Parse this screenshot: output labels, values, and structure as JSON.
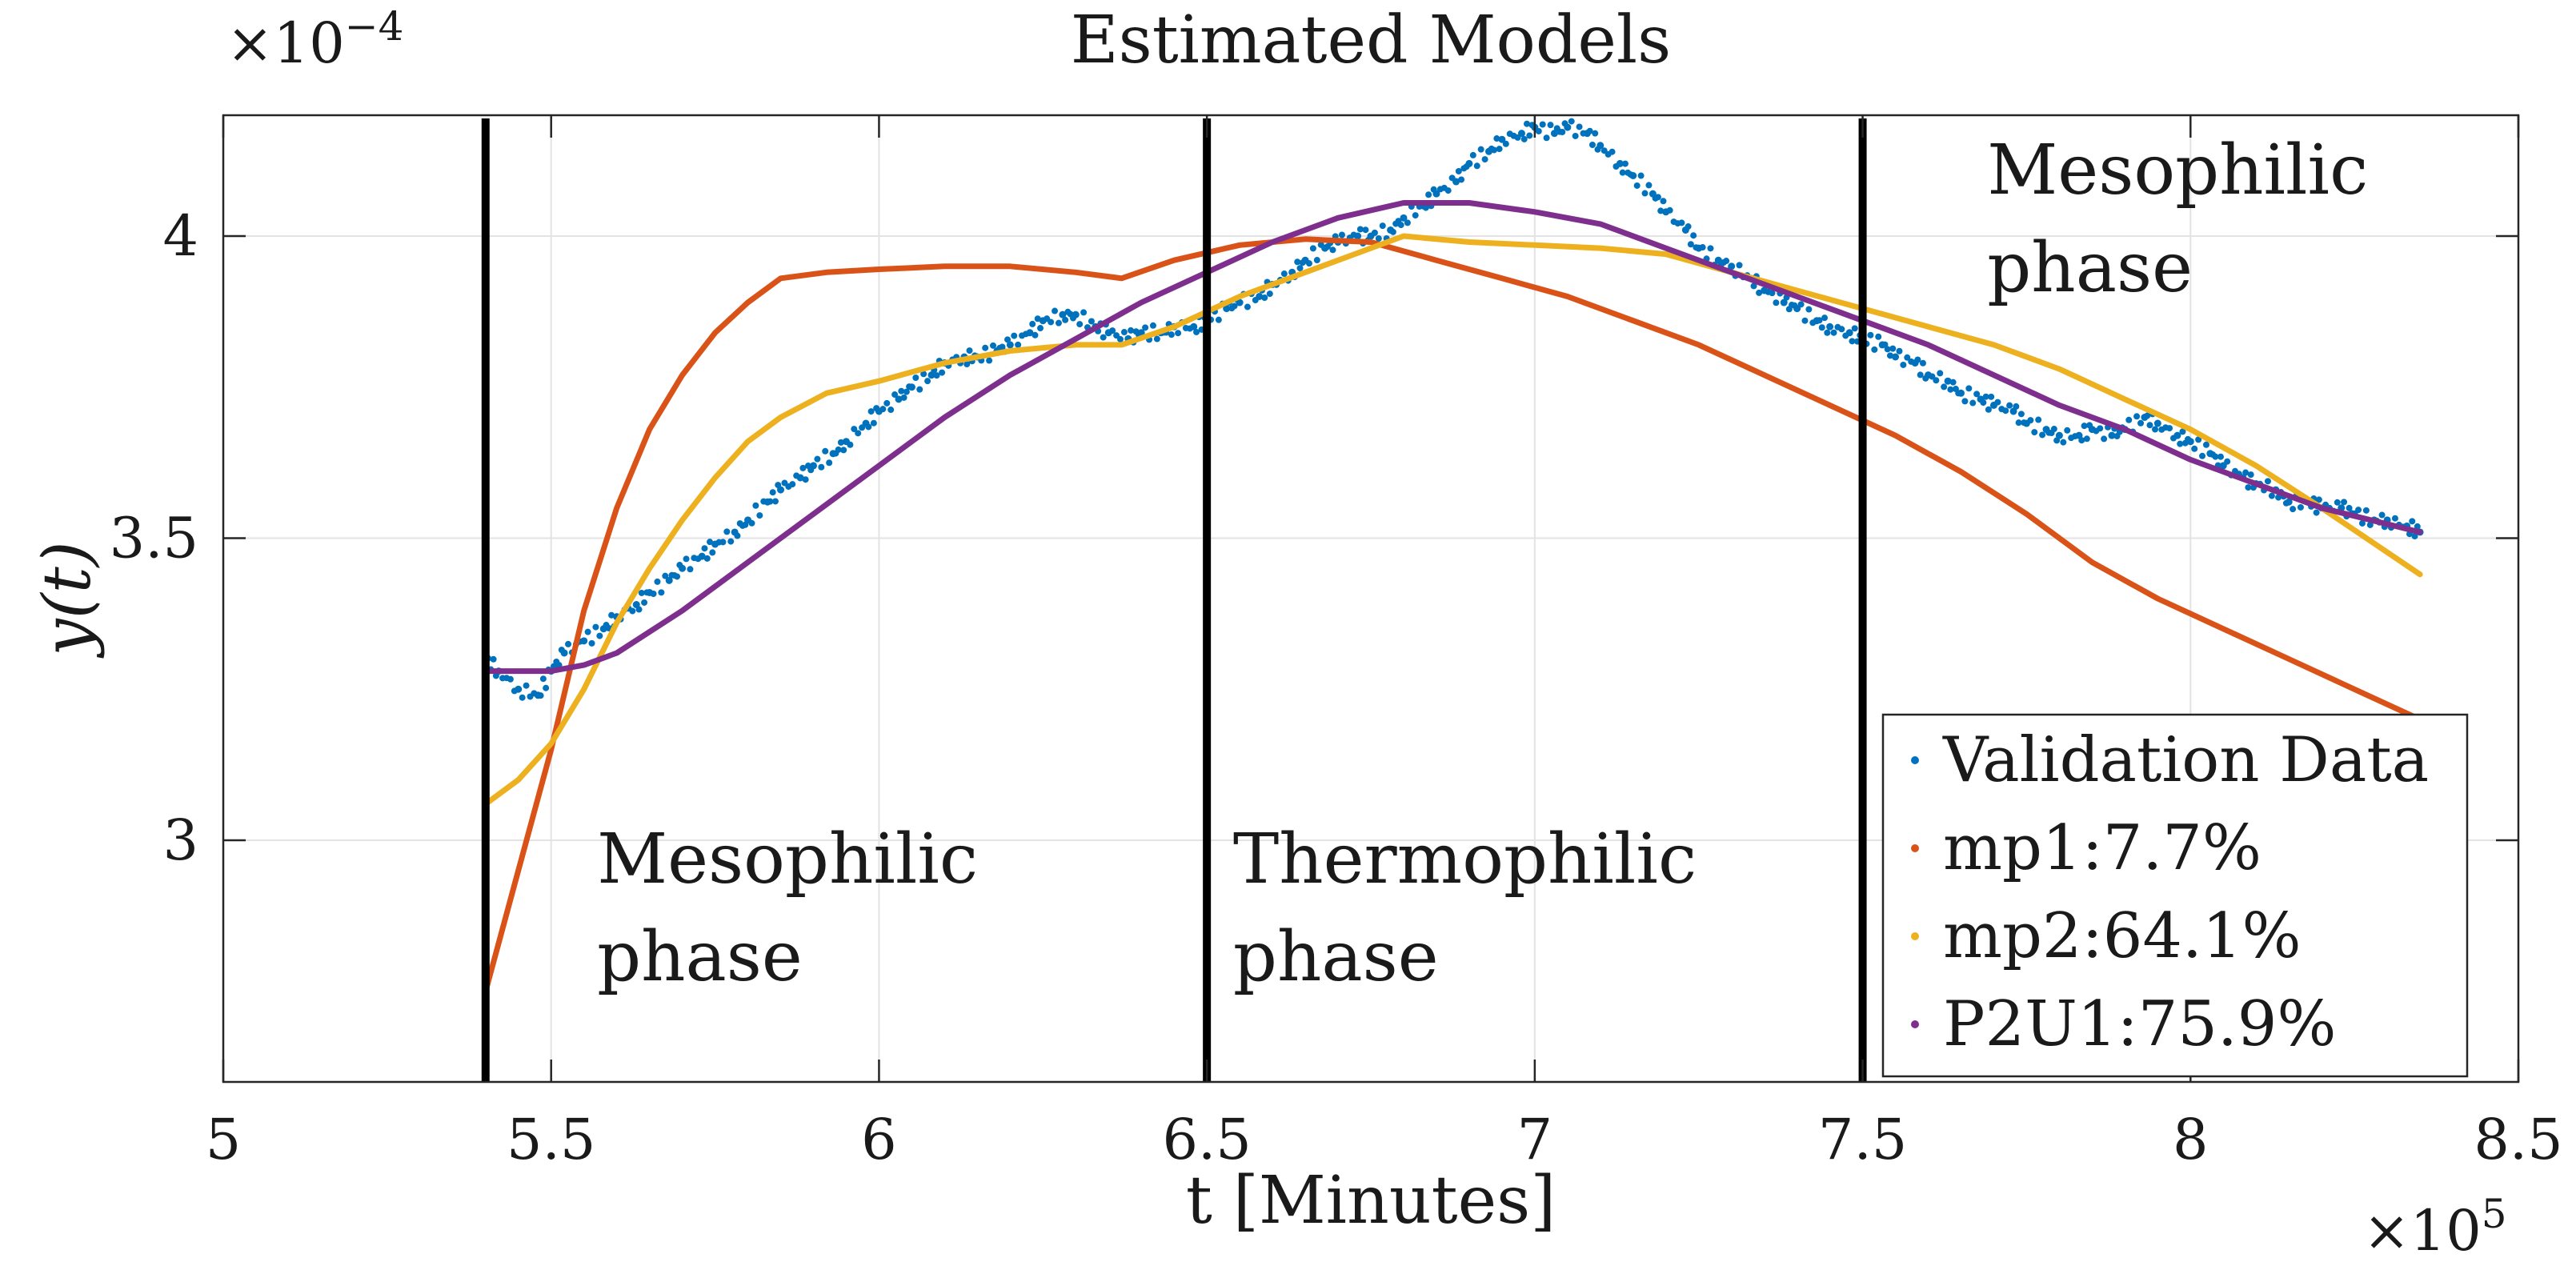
{
  "chart_data": {
    "type": "line",
    "title": "Estimated Models",
    "xlabel": "t [Minutes]",
    "ylabel": "y(t)",
    "x_multiplier_label": "×10",
    "x_multiplier_exp": "5",
    "y_multiplier_label": "×10",
    "y_multiplier_exp": "−4",
    "xlim": [
      5.0,
      8.5
    ],
    "ylim": [
      2.6,
      4.2
    ],
    "xticks": [
      5,
      5.5,
      6,
      6.5,
      7,
      7.5,
      8,
      8.5
    ],
    "xtick_labels": [
      "5",
      "5.5",
      "6",
      "6.5",
      "7",
      "7.5",
      "8",
      "8.5"
    ],
    "yticks": [
      3.0,
      3.5,
      4.0
    ],
    "ytick_labels": [
      "3",
      "3.5",
      "4"
    ],
    "grid": true,
    "legend_position": "bottom-right",
    "phase_lines": [
      5.4,
      6.5,
      7.5
    ],
    "annotations": [
      {
        "line1": "Mesophilic",
        "line2": "phase",
        "x": 5.57,
        "y": 2.93
      },
      {
        "line1": "Thermophilic",
        "line2": "phase",
        "x": 6.54,
        "y": 2.93
      },
      {
        "line1": "Mesophilic",
        "line2": "phase",
        "x": 7.69,
        "y": 4.07
      }
    ],
    "series": [
      {
        "name": "Validation Data",
        "legend_label": "Validation Data",
        "style": "points",
        "color": "#0072BD",
        "x": [
          5.4,
          5.42,
          5.45,
          5.48,
          5.5,
          5.52,
          5.55,
          5.58,
          5.6,
          5.63,
          5.65,
          5.68,
          5.7,
          5.73,
          5.75,
          5.78,
          5.8,
          5.83,
          5.85,
          5.88,
          5.9,
          5.93,
          5.95,
          5.98,
          6.0,
          6.03,
          6.05,
          6.08,
          6.1,
          6.13,
          6.15,
          6.18,
          6.2,
          6.23,
          6.25,
          6.28,
          6.3,
          6.33,
          6.35,
          6.38,
          6.4,
          6.43,
          6.45,
          6.48,
          6.5,
          6.53,
          6.55,
          6.58,
          6.6,
          6.63,
          6.65,
          6.68,
          6.7,
          6.73,
          6.75,
          6.78,
          6.8,
          6.83,
          6.85,
          6.88,
          6.9,
          6.93,
          6.95,
          6.98,
          7.0,
          7.03,
          7.05,
          7.08,
          7.1,
          7.13,
          7.15,
          7.18,
          7.2,
          7.23,
          7.25,
          7.28,
          7.3,
          7.33,
          7.35,
          7.38,
          7.4,
          7.43,
          7.45,
          7.48,
          7.5,
          7.53,
          7.55,
          7.58,
          7.6,
          7.63,
          7.65,
          7.68,
          7.7,
          7.73,
          7.75,
          7.78,
          7.8,
          7.83,
          7.85,
          7.88,
          7.9,
          7.93,
          7.95,
          7.98,
          8.0,
          8.03,
          8.05,
          8.08,
          8.1,
          8.13,
          8.15,
          8.18,
          8.2,
          8.23,
          8.25,
          8.28,
          8.3,
          8.33,
          8.35
        ],
        "y": [
          3.3,
          3.28,
          3.25,
          3.24,
          3.28,
          3.31,
          3.33,
          3.35,
          3.37,
          3.39,
          3.41,
          3.43,
          3.45,
          3.47,
          3.49,
          3.51,
          3.53,
          3.56,
          3.58,
          3.6,
          3.62,
          3.64,
          3.66,
          3.69,
          3.71,
          3.73,
          3.75,
          3.77,
          3.79,
          3.8,
          3.8,
          3.81,
          3.82,
          3.84,
          3.86,
          3.87,
          3.87,
          3.85,
          3.84,
          3.83,
          3.84,
          3.84,
          3.85,
          3.85,
          3.86,
          3.88,
          3.89,
          3.9,
          3.92,
          3.94,
          3.96,
          3.98,
          3.99,
          4.0,
          4.0,
          4.01,
          4.03,
          4.05,
          4.07,
          4.09,
          4.12,
          4.14,
          4.16,
          4.17,
          4.18,
          4.17,
          4.18,
          4.17,
          4.15,
          4.12,
          4.1,
          4.07,
          4.04,
          4.01,
          3.98,
          3.96,
          3.95,
          3.93,
          3.91,
          3.89,
          3.88,
          3.86,
          3.85,
          3.84,
          3.83,
          3.82,
          3.8,
          3.79,
          3.77,
          3.76,
          3.74,
          3.73,
          3.72,
          3.71,
          3.69,
          3.68,
          3.67,
          3.67,
          3.68,
          3.67,
          3.68,
          3.7,
          3.69,
          3.67,
          3.66,
          3.64,
          3.62,
          3.6,
          3.59,
          3.58,
          3.56,
          3.56,
          3.55,
          3.55,
          3.54,
          3.53,
          3.53,
          3.52,
          3.51
        ]
      },
      {
        "name": "mp1:7.7%",
        "legend_label": "mp1:7.7%",
        "style": "line",
        "color": "#D95319",
        "x": [
          5.4,
          5.45,
          5.5,
          5.55,
          5.6,
          5.65,
          5.7,
          5.75,
          5.8,
          5.85,
          5.92,
          6.0,
          6.1,
          6.2,
          6.3,
          6.37,
          6.45,
          6.55,
          6.65,
          6.75,
          6.85,
          6.95,
          7.05,
          7.15,
          7.25,
          7.35,
          7.45,
          7.55,
          7.65,
          7.75,
          7.85,
          7.95,
          8.05,
          8.15,
          8.25,
          8.35
        ],
        "y": [
          2.75,
          2.95,
          3.15,
          3.38,
          3.55,
          3.68,
          3.77,
          3.84,
          3.89,
          3.93,
          3.94,
          3.945,
          3.95,
          3.95,
          3.94,
          3.93,
          3.96,
          3.985,
          3.995,
          3.99,
          3.96,
          3.93,
          3.9,
          3.86,
          3.82,
          3.77,
          3.72,
          3.67,
          3.61,
          3.54,
          3.46,
          3.4,
          3.35,
          3.3,
          3.25,
          3.2
        ]
      },
      {
        "name": "mp2:64.1%",
        "legend_label": "mp2:64.1%",
        "style": "line",
        "color": "#EDB120",
        "x": [
          5.4,
          5.45,
          5.5,
          5.55,
          5.6,
          5.65,
          5.7,
          5.75,
          5.8,
          5.85,
          5.92,
          6.0,
          6.1,
          6.2,
          6.3,
          6.37,
          6.45,
          6.55,
          6.65,
          6.75,
          6.8,
          6.9,
          7.0,
          7.1,
          7.2,
          7.3,
          7.4,
          7.5,
          7.6,
          7.7,
          7.8,
          7.9,
          8.0,
          8.1,
          8.2,
          8.35
        ],
        "y": [
          3.06,
          3.1,
          3.16,
          3.25,
          3.36,
          3.45,
          3.53,
          3.6,
          3.66,
          3.7,
          3.74,
          3.76,
          3.79,
          3.81,
          3.82,
          3.82,
          3.85,
          3.9,
          3.94,
          3.98,
          4.0,
          3.99,
          3.985,
          3.98,
          3.97,
          3.94,
          3.91,
          3.88,
          3.85,
          3.82,
          3.78,
          3.73,
          3.68,
          3.62,
          3.55,
          3.44
        ]
      },
      {
        "name": "P2U1:75.9%",
        "legend_label": "P2U1:75.9%",
        "style": "line",
        "color": "#7E2F8E",
        "x": [
          5.4,
          5.45,
          5.5,
          5.55,
          5.6,
          5.7,
          5.8,
          5.9,
          6.0,
          6.1,
          6.2,
          6.3,
          6.4,
          6.5,
          6.6,
          6.7,
          6.8,
          6.9,
          7.0,
          7.1,
          7.2,
          7.3,
          7.4,
          7.5,
          7.6,
          7.7,
          7.8,
          7.9,
          8.0,
          8.1,
          8.2,
          8.35
        ],
        "y": [
          3.28,
          3.28,
          3.28,
          3.29,
          3.31,
          3.38,
          3.46,
          3.54,
          3.62,
          3.7,
          3.77,
          3.83,
          3.89,
          3.94,
          3.99,
          4.03,
          4.055,
          4.055,
          4.04,
          4.02,
          3.98,
          3.94,
          3.9,
          3.86,
          3.82,
          3.77,
          3.72,
          3.68,
          3.63,
          3.59,
          3.55,
          3.51
        ]
      }
    ]
  }
}
